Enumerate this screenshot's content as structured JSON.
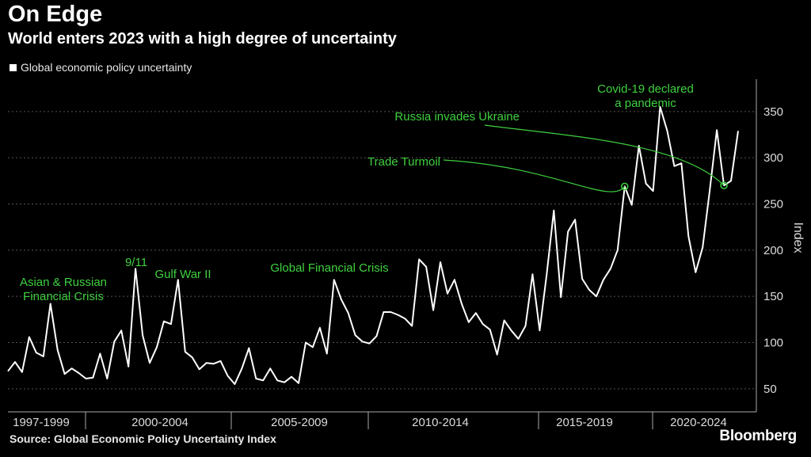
{
  "title": "On Edge",
  "subtitle": "World enters 2023 with a high degree of uncertainty",
  "source": "Source: Global Economic Policy Uncertainty Index",
  "brand": "Bloomberg",
  "chart_data": {
    "type": "line",
    "series": [
      {
        "name": "Global economic policy uncertainty",
        "color": "#ffffff",
        "values": [
          69,
          79,
          68,
          106,
          89,
          85,
          142,
          92,
          66,
          72,
          67,
          61,
          62,
          88,
          61,
          101,
          113,
          74,
          180,
          108,
          78,
          95,
          123,
          120,
          168,
          90,
          84,
          71,
          78,
          77,
          80,
          64,
          55,
          72,
          94,
          61,
          59,
          72,
          59,
          57,
          63,
          56,
          100,
          95,
          116,
          88,
          168,
          147,
          132,
          108,
          101,
          99,
          107,
          133,
          133,
          130,
          126,
          118,
          190,
          182,
          135,
          187,
          153,
          168,
          142,
          122,
          132,
          120,
          114,
          87,
          124,
          113,
          104,
          118,
          174,
          113,
          174,
          243,
          149,
          220,
          233,
          169,
          157,
          150,
          168,
          180,
          200,
          269,
          249,
          313,
          272,
          264,
          355,
          329,
          291,
          294,
          215,
          176,
          203,
          265,
          330,
          270,
          275,
          329
        ]
      }
    ],
    "x_label_ticks": [
      "1997-1999",
      "2000-2004",
      "2005-2009",
      "2010-2014",
      "2015-2019",
      "2020-2024"
    ],
    "ylabel": "Index",
    "yticks": [
      50,
      100,
      150,
      200,
      250,
      300,
      350
    ],
    "ylim": [
      25,
      385
    ],
    "grid": true,
    "legend_position": "top-left",
    "annotations": [
      {
        "text_lines": [
          "Asian & Russian",
          "Financial Crisis"
        ],
        "color": "#3fd13f"
      },
      {
        "text_lines": [
          "9/11"
        ],
        "color": "#3fd13f"
      },
      {
        "text_lines": [
          "Gulf War II"
        ],
        "color": "#3fd13f"
      },
      {
        "text_lines": [
          "Global Financial Crisis"
        ],
        "color": "#3fd13f"
      },
      {
        "text_lines": [
          "Trade Turmoil"
        ],
        "color": "#3fd13f",
        "point_index": 87
      },
      {
        "text_lines": [
          "Russia invades Ukraine"
        ],
        "color": "#3fd13f",
        "point_index": 101
      },
      {
        "text_lines": [
          "Covid-19 declared",
          "a pandemic"
        ],
        "color": "#3fd13f"
      }
    ]
  }
}
